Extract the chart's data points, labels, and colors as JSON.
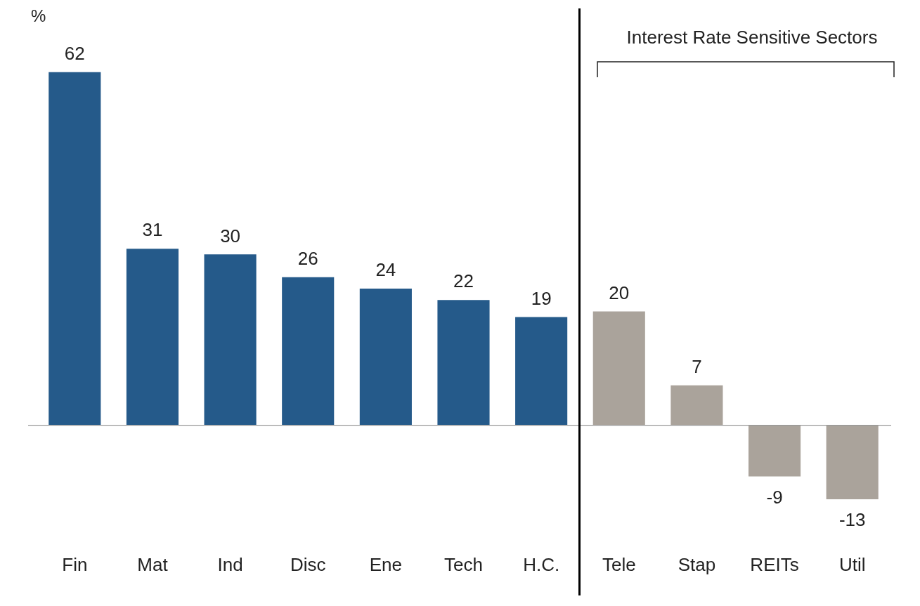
{
  "chart_data": {
    "type": "bar",
    "ylabel": "%",
    "categories": [
      "Fin",
      "Mat",
      "Ind",
      "Disc",
      "Ene",
      "Tech",
      "H.C.",
      "Tele",
      "Stap",
      "REITs",
      "Util"
    ],
    "values": [
      62,
      31,
      30,
      26,
      24,
      22,
      19,
      20,
      7,
      -9,
      -13
    ],
    "colors": [
      "#255a8a",
      "#255a8a",
      "#255a8a",
      "#255a8a",
      "#255a8a",
      "#255a8a",
      "#255a8a",
      "#aaa39b",
      "#aaa39b",
      "#aaa39b",
      "#aaa39b"
    ],
    "data_labels": true,
    "legend": false,
    "annotations": [
      "Interest Rate Sensitive Sectors"
    ]
  }
}
